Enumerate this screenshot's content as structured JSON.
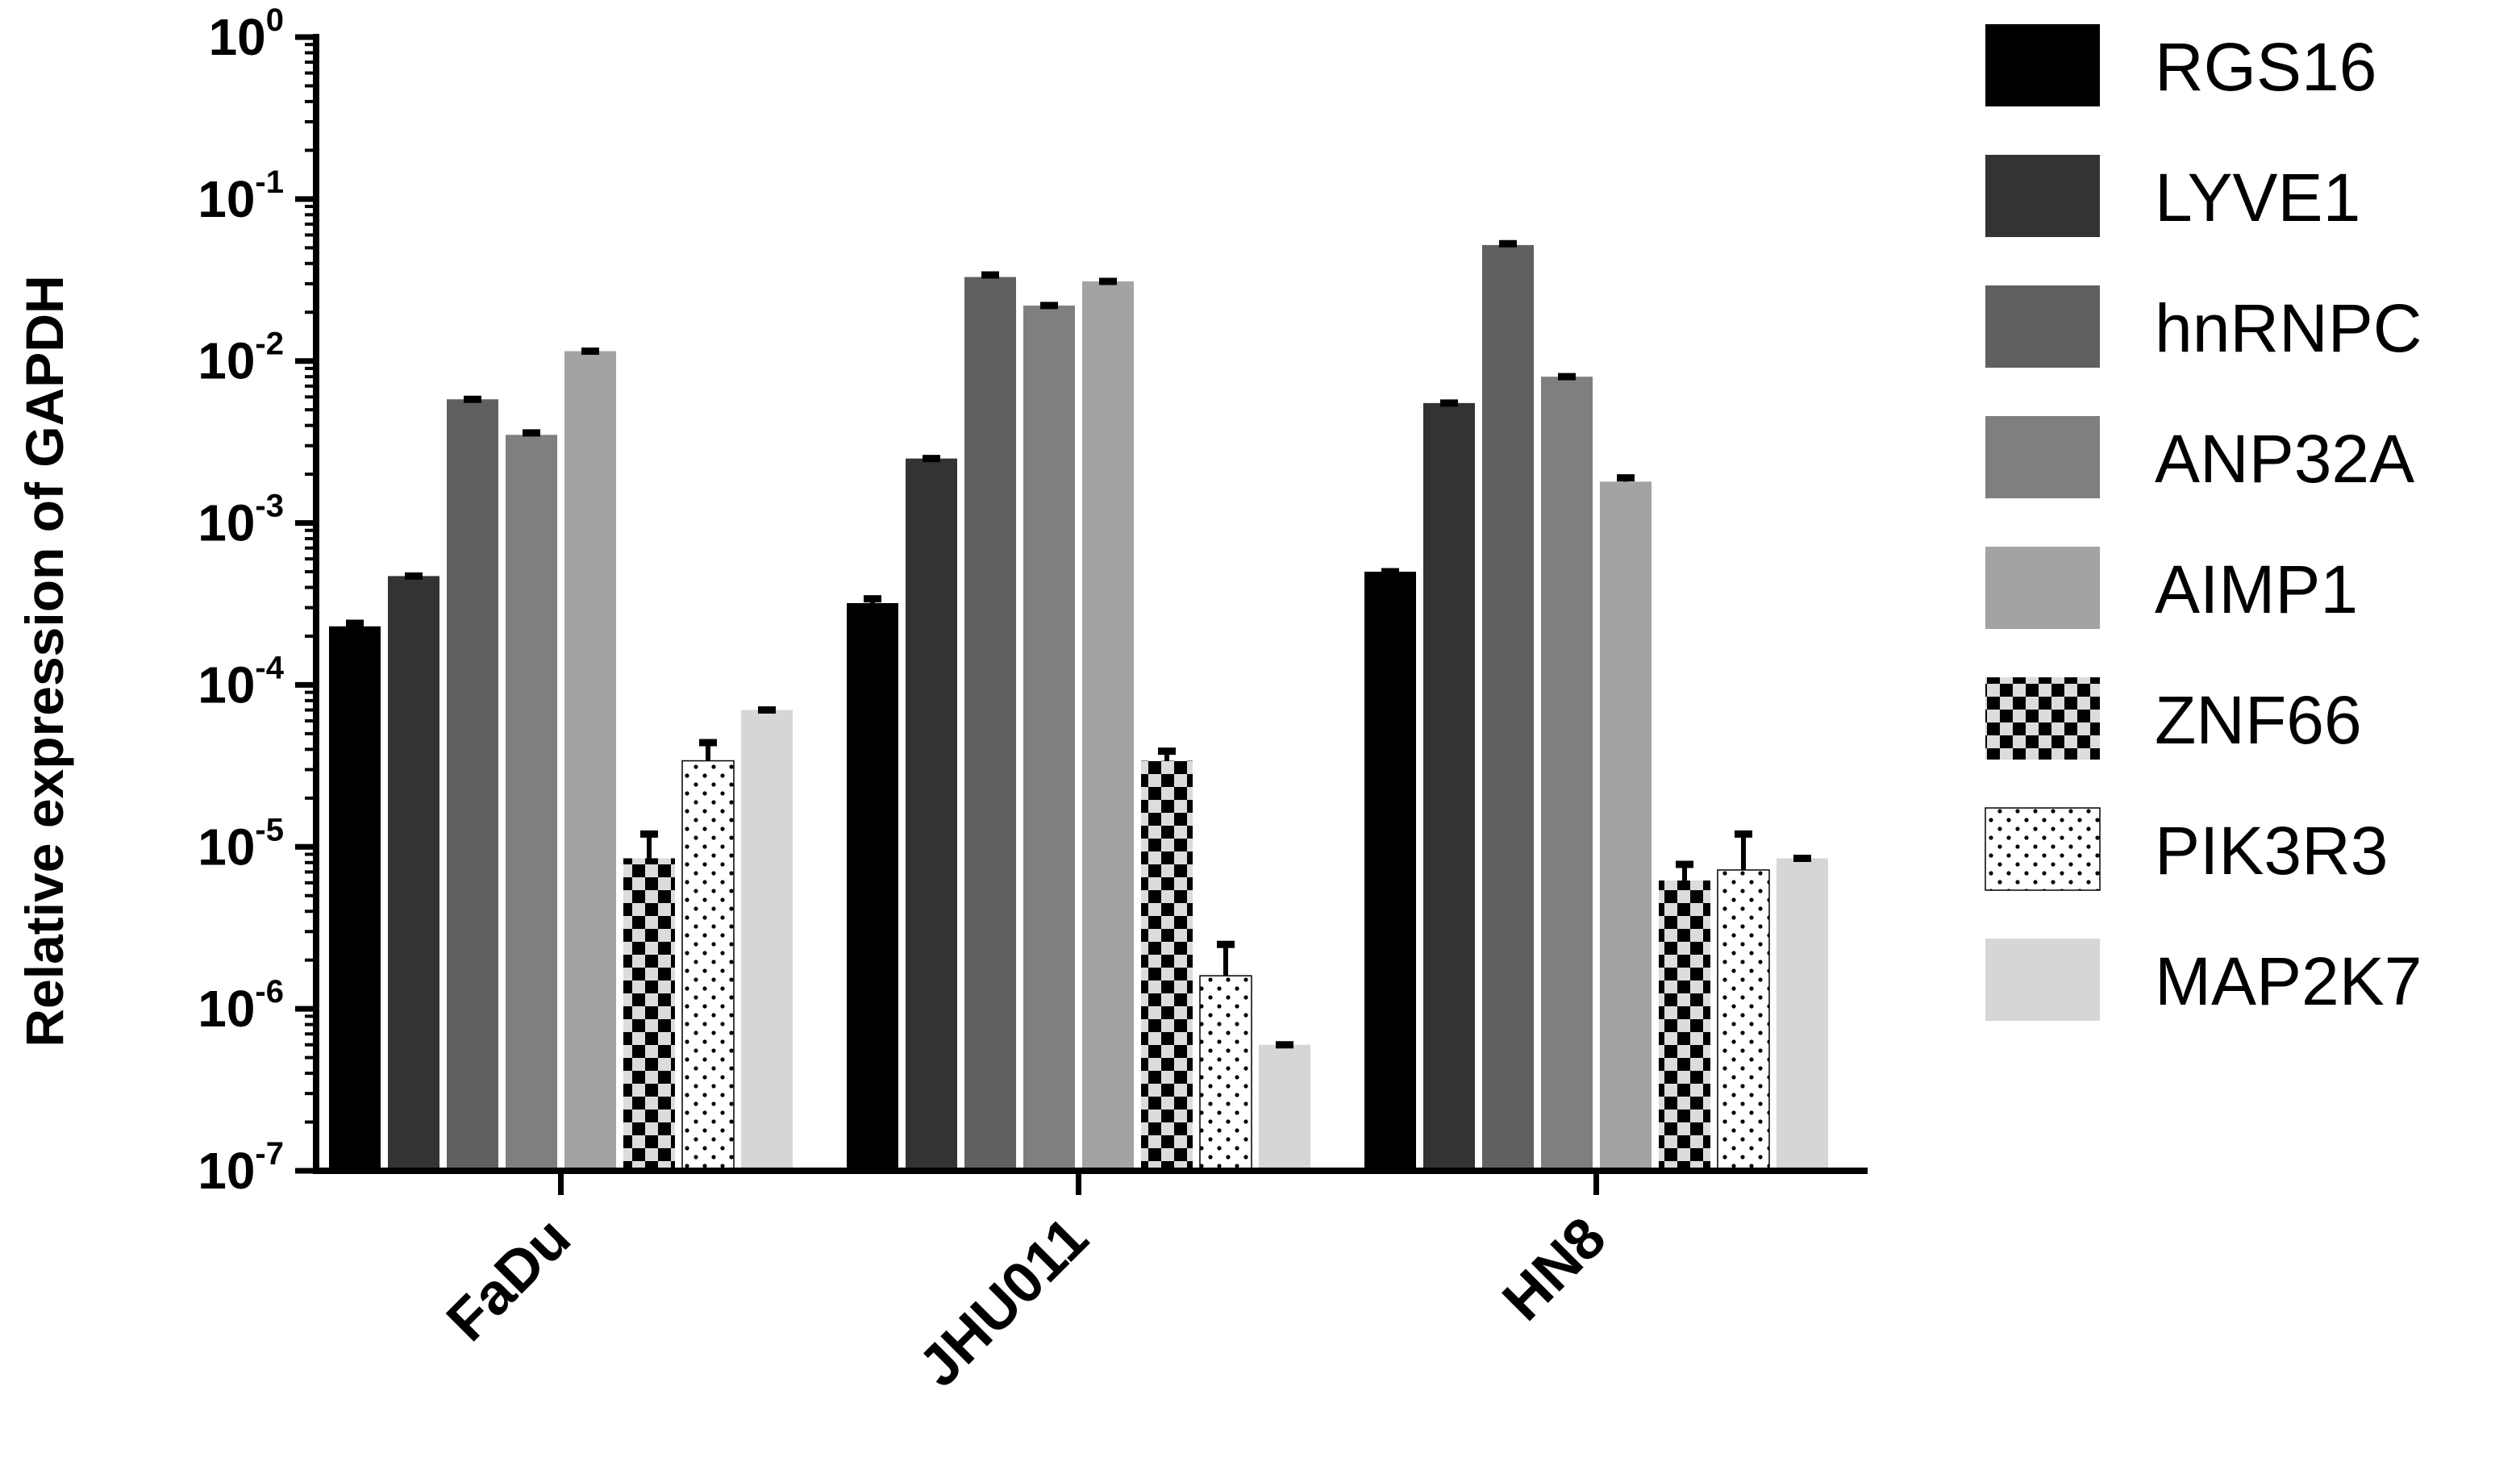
{
  "chart_data": {
    "type": "bar",
    "title": "",
    "xlabel": "",
    "ylabel": "Relative expression of GAPDH",
    "yscale": "log",
    "ylim": [
      1e-07,
      1
    ],
    "yticks": [
      {
        "base": "10",
        "exp": "0",
        "value": 1
      },
      {
        "base": "10",
        "exp": "-1",
        "value": 0.1
      },
      {
        "base": "10",
        "exp": "-2",
        "value": 0.01
      },
      {
        "base": "10",
        "exp": "-3",
        "value": 0.001
      },
      {
        "base": "10",
        "exp": "-4",
        "value": 0.0001
      },
      {
        "base": "10",
        "exp": "-5",
        "value": 1e-05
      },
      {
        "base": "10",
        "exp": "-6",
        "value": 1e-06
      },
      {
        "base": "10",
        "exp": "-7",
        "value": 1e-07
      }
    ],
    "categories": [
      "FaDu",
      "JHU011",
      "HN8"
    ],
    "grid": false,
    "legend_position": "right",
    "series": [
      {
        "name": "RGS16",
        "color": "#000000",
        "pattern": "solid",
        "values": [
          0.00023,
          0.00032,
          0.0005
        ],
        "errors": [
          0.00024,
          0.00034,
          0.0005
        ]
      },
      {
        "name": "LYVE1",
        "color": "#333333",
        "pattern": "solid",
        "values": [
          0.00047,
          0.0025,
          0.0055
        ],
        "errors": [
          0.00047,
          0.0025,
          0.0055
        ]
      },
      {
        "name": "hnRNPC",
        "color": "#606060",
        "pattern": "solid",
        "values": [
          0.0058,
          0.033,
          0.052
        ],
        "errors": [
          0.0058,
          0.034,
          0.053
        ]
      },
      {
        "name": "ANP32A",
        "color": "#7f7f7f",
        "pattern": "solid",
        "values": [
          0.0035,
          0.022,
          0.008
        ],
        "errors": [
          0.0036,
          0.022,
          0.008
        ]
      },
      {
        "name": "AIMP1",
        "color": "#a3a3a6",
        "pattern": "solid",
        "values": [
          0.0115,
          0.031,
          0.0018
        ],
        "errors": [
          0.0115,
          0.031,
          0.0019
        ]
      },
      {
        "name": "ZNF66",
        "color": "#000000",
        "pattern": "checker",
        "values": [
          8.5e-06,
          3.4e-05,
          6.2e-06
        ],
        "errors": [
          1.2e-05,
          3.9e-05,
          7.8e-06
        ]
      },
      {
        "name": "PIK3R3",
        "color": "#000000",
        "pattern": "dots",
        "values": [
          3.4e-05,
          1.6e-06,
          7.2e-06
        ],
        "errors": [
          4.4e-05,
          2.5e-06,
          1.2e-05
        ]
      },
      {
        "name": "MAP2K7",
        "color": "#d6d6d6",
        "pattern": "solid",
        "values": [
          7e-05,
          6e-07,
          8.5e-06
        ],
        "errors": [
          7e-05,
          6e-07,
          8.5e-06
        ]
      }
    ]
  }
}
